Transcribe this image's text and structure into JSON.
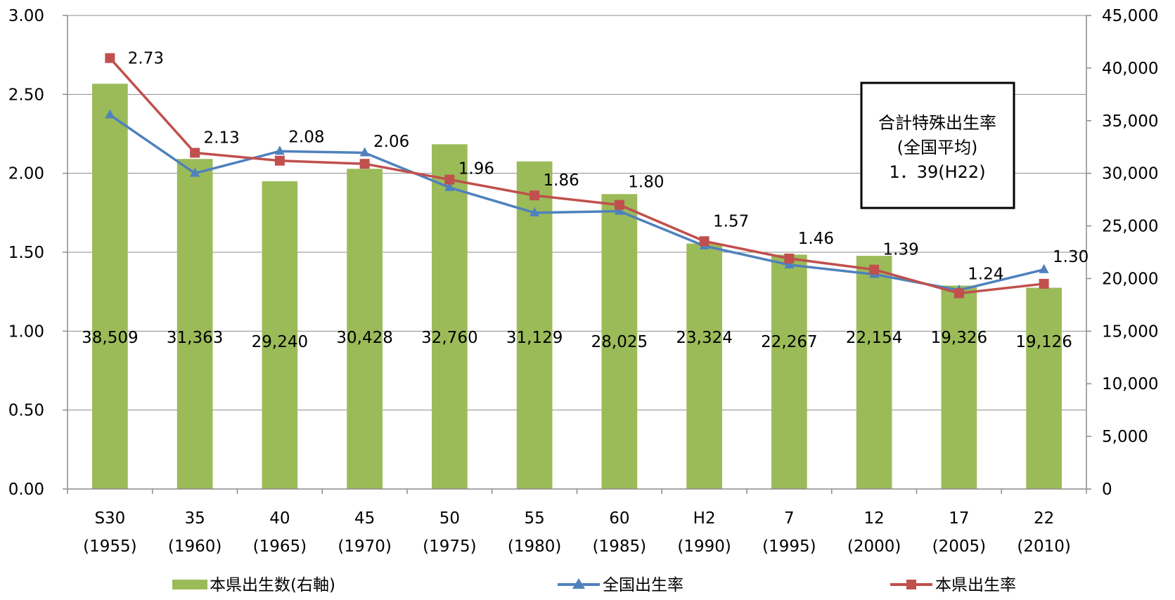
{
  "chart_data": {
    "type": "bar",
    "categories": [
      [
        "S30",
        "(1955)"
      ],
      [
        "35",
        "(1960)"
      ],
      [
        "40",
        "(1965)"
      ],
      [
        "45",
        "(1970)"
      ],
      [
        "50",
        "(1975)"
      ],
      [
        "55",
        "(1980)"
      ],
      [
        "60",
        "(1985)"
      ],
      [
        "H2",
        "(1990)"
      ],
      [
        "7",
        "(1995)"
      ],
      [
        "12",
        "(2000)"
      ],
      [
        "17",
        "(2005)"
      ],
      [
        "22",
        "(2010)"
      ]
    ],
    "series": [
      {
        "name": "本県出生数(右軸)",
        "type": "bar",
        "axis": "right",
        "color": "#9BBB59",
        "values": [
          38509,
          31363,
          29240,
          30428,
          32760,
          31129,
          28025,
          23324,
          22267,
          22154,
          19326,
          19126
        ],
        "labels": [
          "38,509",
          "31,363",
          "29,240",
          "30,428",
          "32,760",
          "31,129",
          "28,025",
          "23,324",
          "22,267",
          "22,154",
          "19,326",
          "19,126"
        ]
      },
      {
        "name": "全国出生率",
        "type": "line",
        "axis": "left",
        "color": "#4F81BD",
        "marker": "triangle",
        "values": [
          2.37,
          2.0,
          2.14,
          2.13,
          1.91,
          1.75,
          1.76,
          1.54,
          1.42,
          1.36,
          1.26,
          1.39
        ]
      },
      {
        "name": "本県出生率",
        "type": "line",
        "axis": "left",
        "color": "#C0504D",
        "marker": "square",
        "values": [
          2.73,
          2.13,
          2.08,
          2.06,
          1.96,
          1.86,
          1.8,
          1.57,
          1.46,
          1.39,
          1.24,
          1.3
        ],
        "labels": [
          "2.73",
          "2.13",
          "2.08",
          "2.06",
          "1.96",
          "1.86",
          "1.80",
          "1.57",
          "1.46",
          "1.39",
          "1.24",
          "1.30"
        ]
      }
    ],
    "y_left": {
      "min": 0,
      "max": 3,
      "ticks": [
        "0.00",
        "0.50",
        "1.00",
        "1.50",
        "2.00",
        "2.50",
        "3.00"
      ]
    },
    "y_right": {
      "min": 0,
      "max": 45000,
      "ticks": [
        "0",
        "5,000",
        "10,000",
        "15,000",
        "20,000",
        "25,000",
        "30,000",
        "35,000",
        "40,000",
        "45,000"
      ]
    },
    "grid": true,
    "legend_position": "bottom",
    "annotation": {
      "lines": [
        "合計特殊出生率",
        "(全国平均)",
        "1．39(H22)"
      ]
    },
    "title": "",
    "xlabel": "",
    "ylabel": ""
  }
}
